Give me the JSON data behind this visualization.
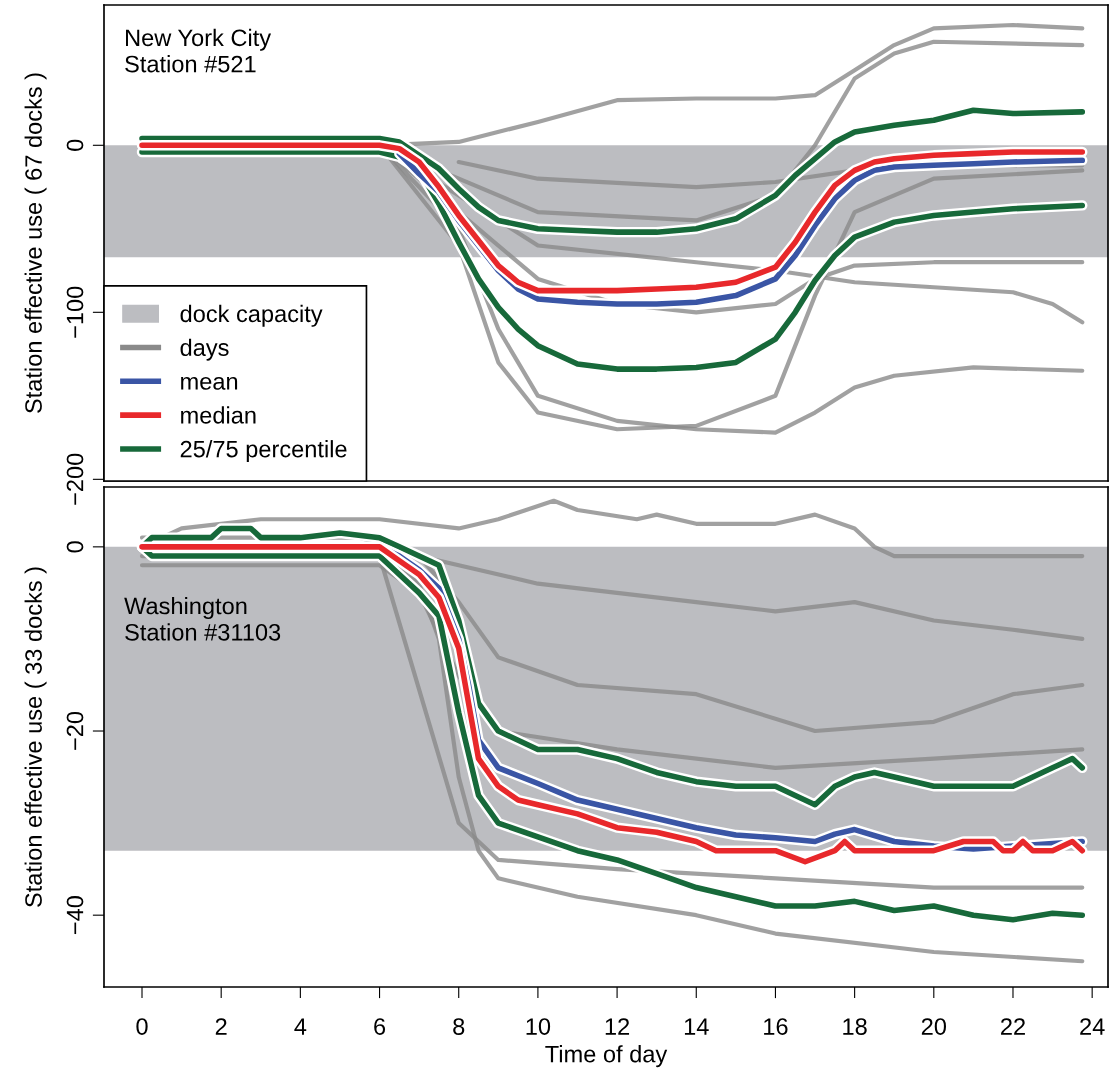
{
  "chart_data": [
    {
      "type": "line",
      "ylabel": "Station effective use ( 67 docks )",
      "xlim": [
        -0.96,
        24.4
      ],
      "xticks": [
        0,
        2,
        4,
        6,
        8,
        10,
        12,
        14,
        16,
        18,
        20,
        22,
        24
      ],
      "ylim": [
        -201,
        84
      ],
      "yticks": [
        0,
        {
          "value": -100,
          "label": "−100"
        },
        {
          "value": -200,
          "label": "−200"
        }
      ],
      "tick_labels": "y",
      "grid": false,
      "legend": "bottom left",
      "line_style": "solid",
      "marker": "none",
      "annotations": [
        "New York City\nStation #521"
      ],
      "bands": [
        {
          "axis": "y",
          "from": 0,
          "to": -67,
          "label": "dock capacity",
          "color": "#bcbdc1"
        }
      ],
      "series": [
        {
          "name": "days",
          "color": "#8a8a8a",
          "x": [
            0,
            6,
            8,
            10,
            12,
            14,
            16,
            17,
            18,
            19,
            20,
            22,
            23.75
          ],
          "values": [
            0,
            0,
            2,
            14,
            27,
            28,
            28,
            30,
            45,
            60,
            70,
            72,
            70
          ]
        },
        {
          "color": "#8a8a8a",
          "x": [
            0,
            6,
            8,
            9,
            10,
            12,
            14,
            16,
            17,
            18,
            20,
            23.75
          ],
          "values": [
            0,
            0,
            -60,
            -130,
            -160,
            -170,
            -168,
            -150,
            -90,
            -40,
            -20,
            -15
          ]
        },
        {
          "color": "#8a8a8a",
          "x": [
            0,
            6,
            8,
            9,
            10,
            12,
            14,
            16,
            17,
            18,
            19,
            21,
            23.75
          ],
          "values": [
            0,
            0,
            -50,
            -110,
            -150,
            -165,
            -170,
            -172,
            -160,
            -145,
            -138,
            -133,
            -135
          ]
        },
        {
          "color": "#8a8a8a",
          "x": [
            0,
            6,
            8,
            10,
            14,
            16,
            17,
            18,
            19,
            20,
            23.75
          ],
          "values": [
            0,
            0,
            -20,
            -40,
            -45,
            -30,
            0,
            40,
            55,
            62,
            60
          ]
        },
        {
          "color": "#8a8a8a",
          "x": [
            0,
            6,
            8,
            10,
            14,
            16,
            18,
            20,
            22,
            23,
            23.75
          ],
          "values": [
            0,
            0,
            -30,
            -60,
            -70,
            -75,
            -82,
            -85,
            -88,
            -95,
            -106
          ]
        },
        {
          "color": "#8a8a8a",
          "x": [
            0,
            6,
            8,
            10,
            12,
            14,
            16,
            17,
            18,
            20,
            23.75
          ],
          "values": [
            0,
            0,
            -40,
            -80,
            -95,
            -100,
            -95,
            -80,
            -72,
            -70,
            -70
          ]
        },
        {
          "color": "#8a8a8a",
          "x": [
            8,
            10,
            14,
            16,
            18,
            20,
            23.75
          ],
          "values": [
            -10,
            -20,
            -25,
            -22,
            -15,
            -12,
            -12
          ]
        },
        {
          "name": "mean",
          "color": "#3a55a5",
          "x": [
            6.5,
            7,
            7.5,
            8,
            8.5,
            9,
            9.5,
            10,
            11,
            12,
            13,
            14,
            15,
            16,
            16.5,
            17,
            17.5,
            18,
            18.5,
            19,
            20,
            21,
            22,
            23.75
          ],
          "values": [
            -5,
            -17,
            -28,
            -45,
            -60,
            -75,
            -86,
            -92,
            -94,
            -95,
            -95,
            -94,
            -90,
            -80,
            -66,
            -48,
            -32,
            -21,
            -15,
            -13,
            -12,
            -11,
            -10,
            -9
          ]
        },
        {
          "name": "median",
          "color": "#e8282b",
          "x": [
            0,
            6,
            6.5,
            7,
            7.5,
            8,
            8.5,
            9,
            9.5,
            10,
            11,
            12,
            13,
            14,
            15,
            16,
            16.5,
            17,
            17.5,
            18,
            18.5,
            19,
            20,
            21,
            22,
            23.75
          ],
          "values": [
            0,
            0,
            -2,
            -10,
            -25,
            -42,
            -57,
            -72,
            -82,
            -87,
            -87,
            -87,
            -86,
            -85,
            -82,
            -73,
            -58,
            -40,
            -24,
            -15,
            -10,
            -8,
            -6,
            -5,
            -4,
            -4
          ]
        },
        {
          "name": "25/75 percentile",
          "color": "#17693a",
          "x": [
            0,
            6,
            6.5,
            7,
            7.5,
            8,
            8.5,
            9,
            10,
            11,
            12,
            13,
            14,
            15,
            16,
            16.5,
            17,
            17.5,
            18,
            19,
            20,
            21,
            22,
            23.75
          ],
          "values": [
            4,
            4,
            2,
            -6,
            -14,
            -26,
            -37,
            -45,
            -50,
            -51,
            -52,
            -52,
            -50,
            -44,
            -30,
            -18,
            -8,
            2,
            8,
            12,
            15,
            21,
            19,
            20
          ]
        },
        {
          "color": "#17693a",
          "x": [
            0,
            6,
            6.5,
            7,
            7.5,
            8,
            8.5,
            9,
            9.5,
            10,
            11,
            12,
            13,
            14,
            15,
            16,
            16.5,
            17,
            17.5,
            18,
            19,
            20,
            21,
            22,
            23.75
          ],
          "values": [
            -4,
            -4,
            -7,
            -15,
            -35,
            -58,
            -80,
            -97,
            -110,
            -120,
            -131,
            -134,
            -134,
            -133,
            -130,
            -116,
            -100,
            -81,
            -66,
            -55,
            -46,
            -42,
            -40,
            -38,
            -36
          ]
        }
      ]
    },
    {
      "type": "line",
      "xlabel": "Time of day",
      "ylabel": "Station effective use ( 33 docks )",
      "xlim": [
        -0.96,
        24.4
      ],
      "xticks": [
        0,
        2,
        4,
        6,
        8,
        10,
        12,
        14,
        16,
        18,
        20,
        22,
        24
      ],
      "ylim": [
        -47.8,
        6.5
      ],
      "yticks": [
        0,
        {
          "value": -20,
          "label": "−20"
        },
        {
          "value": -40,
          "label": "−40"
        }
      ],
      "grid": false,
      "line_style": "solid",
      "marker": "none",
      "annotations": [
        "Washington\nStation #31103"
      ],
      "bands": [
        {
          "axis": "y",
          "from": 0,
          "to": -33,
          "color": "#bcbdc1"
        }
      ],
      "series": [
        {
          "color": "#8a8a8a",
          "x": [
            0,
            1,
            3,
            6,
            8,
            9,
            10.4,
            11,
            12.5,
            13,
            14,
            16,
            17,
            18,
            18.5,
            19,
            21,
            23.75
          ],
          "values": [
            0,
            2,
            3,
            3,
            2,
            3,
            5,
            4,
            3,
            3.5,
            2.5,
            2.5,
            3.5,
            2,
            0,
            -1,
            -1,
            -1
          ]
        },
        {
          "color": "#8a8a8a",
          "x": [
            0,
            6,
            8,
            10,
            14,
            16,
            18,
            20,
            22,
            23.75
          ],
          "values": [
            0,
            0,
            -2,
            -4,
            -6,
            -7,
            -6,
            -8,
            -9,
            -10
          ]
        },
        {
          "color": "#8a8a8a",
          "x": [
            0,
            6,
            7,
            8,
            9,
            12,
            16,
            20,
            23.75
          ],
          "values": [
            -2,
            -2,
            -5,
            -14,
            -20,
            -22,
            -24,
            -23,
            -22
          ]
        },
        {
          "color": "#8a8a8a",
          "x": [
            0,
            6,
            7,
            7.5,
            8,
            8.5,
            9,
            11,
            14,
            16,
            20,
            23.75
          ],
          "values": [
            0,
            -1,
            -4,
            -10,
            -25,
            -33,
            -36,
            -38,
            -40,
            -42,
            -44,
            -45
          ]
        },
        {
          "color": "#8a8a8a",
          "x": [
            0,
            5.5,
            7,
            8,
            9,
            11,
            14,
            17,
            20,
            22,
            23.75
          ],
          "values": [
            1,
            1,
            -1,
            -6,
            -12,
            -15,
            -16,
            -20,
            -19,
            -16,
            -15
          ]
        },
        {
          "color": "#8a8a8a",
          "x": [
            0,
            6,
            8,
            9,
            12,
            16,
            20,
            23.75
          ],
          "values": [
            -1,
            -1,
            -30,
            -34,
            -35,
            -36,
            -37,
            -37
          ]
        },
        {
          "color": "#3a55a5",
          "x": [
            0,
            6,
            6.5,
            7,
            7.5,
            8,
            8.25,
            8.5,
            9,
            10,
            11,
            12,
            13,
            14,
            15,
            16,
            17,
            17.5,
            18,
            19,
            20,
            21,
            22,
            23.75
          ],
          "values": [
            0,
            0,
            -1,
            -2.5,
            -4.5,
            -10,
            -15,
            -21,
            -24,
            -25.7,
            -27.5,
            -28.5,
            -29.5,
            -30.5,
            -31.3,
            -31.6,
            -32,
            -31.2,
            -30.7,
            -32,
            -32.5,
            -32.8,
            -32.5,
            -32
          ]
        },
        {
          "color": "#e8282b",
          "x": [
            0,
            6,
            6.5,
            7,
            7.5,
            8,
            8.25,
            8.5,
            9,
            9.5,
            10,
            11,
            12,
            13,
            14,
            14.5,
            16,
            16.75,
            17.5,
            17.75,
            18,
            20,
            20.75,
            21.5,
            21.75,
            22,
            22.25,
            22.5,
            23,
            23.5,
            23.75
          ],
          "values": [
            0,
            0,
            -1.5,
            -3,
            -5.5,
            -11,
            -17,
            -23,
            -26,
            -27.5,
            -28,
            -29,
            -30.5,
            -31,
            -32,
            -33,
            -33,
            -34.2,
            -33,
            -32,
            -33,
            -33,
            -32,
            -32,
            -33,
            -33,
            -32,
            -33,
            -33,
            -32,
            -33
          ]
        },
        {
          "color": "#17693a",
          "x": [
            0,
            0.25,
            1.75,
            2,
            2.75,
            3,
            4,
            5,
            6,
            6.5,
            7,
            7.5,
            8,
            8.5,
            9,
            10,
            11,
            12,
            13,
            14,
            15,
            16,
            16.5,
            17,
            17.5,
            18,
            18.5,
            19,
            20,
            21,
            22,
            22.5,
            23,
            23.5,
            23.75
          ],
          "values": [
            0,
            1,
            1,
            2,
            2,
            1,
            1,
            1.5,
            1,
            0,
            -1,
            -2,
            -8,
            -17,
            -20,
            -22,
            -22,
            -23,
            -24.5,
            -25.5,
            -26,
            -26,
            -27,
            -28,
            -26,
            -25,
            -24.5,
            -25,
            -26,
            -26,
            -26,
            -25,
            -24,
            -23,
            -24
          ]
        },
        {
          "color": "#17693a",
          "x": [
            0,
            0.25,
            6,
            6.5,
            7,
            7.5,
            8,
            8.5,
            9,
            10,
            11,
            12,
            13,
            14,
            15,
            16,
            17,
            18,
            19,
            20,
            21,
            22,
            23,
            23.75
          ],
          "values": [
            0,
            -1,
            -1,
            -3,
            -5,
            -7.5,
            -18,
            -27,
            -30,
            -31.5,
            -33,
            -34,
            -35.5,
            -37,
            -38,
            -39,
            -39,
            -38.5,
            -39.5,
            -39,
            -40,
            -40.5,
            -39.8,
            -40
          ]
        }
      ]
    }
  ]
}
